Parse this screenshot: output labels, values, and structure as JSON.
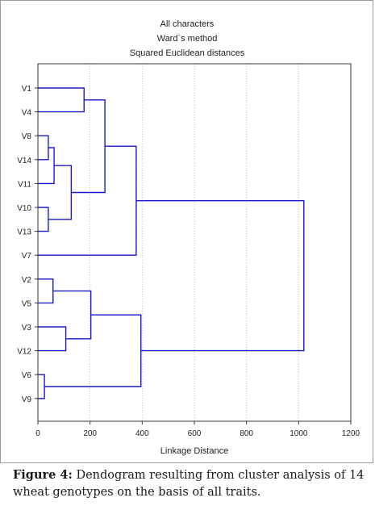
{
  "chart_data": {
    "type": "dendrogram",
    "title_lines": [
      "All characters",
      "Ward`s method",
      "Squared Euclidean distances"
    ],
    "xlabel": "Linkage Distance",
    "xlim": [
      0,
      1200
    ],
    "xticks": [
      "0",
      "200",
      "400",
      "600",
      "800",
      "1000",
      "1200"
    ],
    "grid": "vertical dotted",
    "leaves": [
      "V1",
      "V4",
      "V8",
      "V14",
      "V11",
      "V10",
      "V13",
      "V7",
      "V2",
      "V5",
      "V3",
      "V12",
      "V6",
      "V9"
    ],
    "merges": [
      {
        "a": "V8",
        "b": "V14",
        "height": 40
      },
      {
        "a": "V10",
        "b": "V13",
        "height": 40
      },
      {
        "a": "V2",
        "b": "V5",
        "height": 58
      },
      {
        "a": "V6",
        "b": "V9",
        "height": 25
      },
      {
        "a": "V8+V14",
        "b": "V11",
        "height": 62
      },
      {
        "a": "V3",
        "b": "V12",
        "height": 107
      },
      {
        "a": "V8+V14+V11",
        "b": "V10+V13",
        "height": 128
      },
      {
        "a": "V1",
        "b": "V4",
        "height": 177
      },
      {
        "a": "V2+V5",
        "b": "V3+V12",
        "height": 203
      },
      {
        "a": "V1+V4",
        "b": "V8+V14+V11+V10+V13",
        "height": 257
      },
      {
        "a": "V1+V4+V8+V14+V11+V10+V13",
        "b": "V7",
        "height": 377
      },
      {
        "a": "V2+V5+V3+V12",
        "b": "V6+V9",
        "height": 395
      },
      {
        "a": "cluster-1",
        "b": "cluster-2",
        "height": 1020
      }
    ]
  },
  "colors": {
    "lines": "#1a1acc",
    "text": "#222222",
    "axis": "#333333",
    "grid": "#b8b8b8"
  },
  "caption": {
    "label": "Figure 4:",
    "text": " Dendogram resulting from cluster analysis of 14 wheat genotypes on the basis of all traits."
  }
}
